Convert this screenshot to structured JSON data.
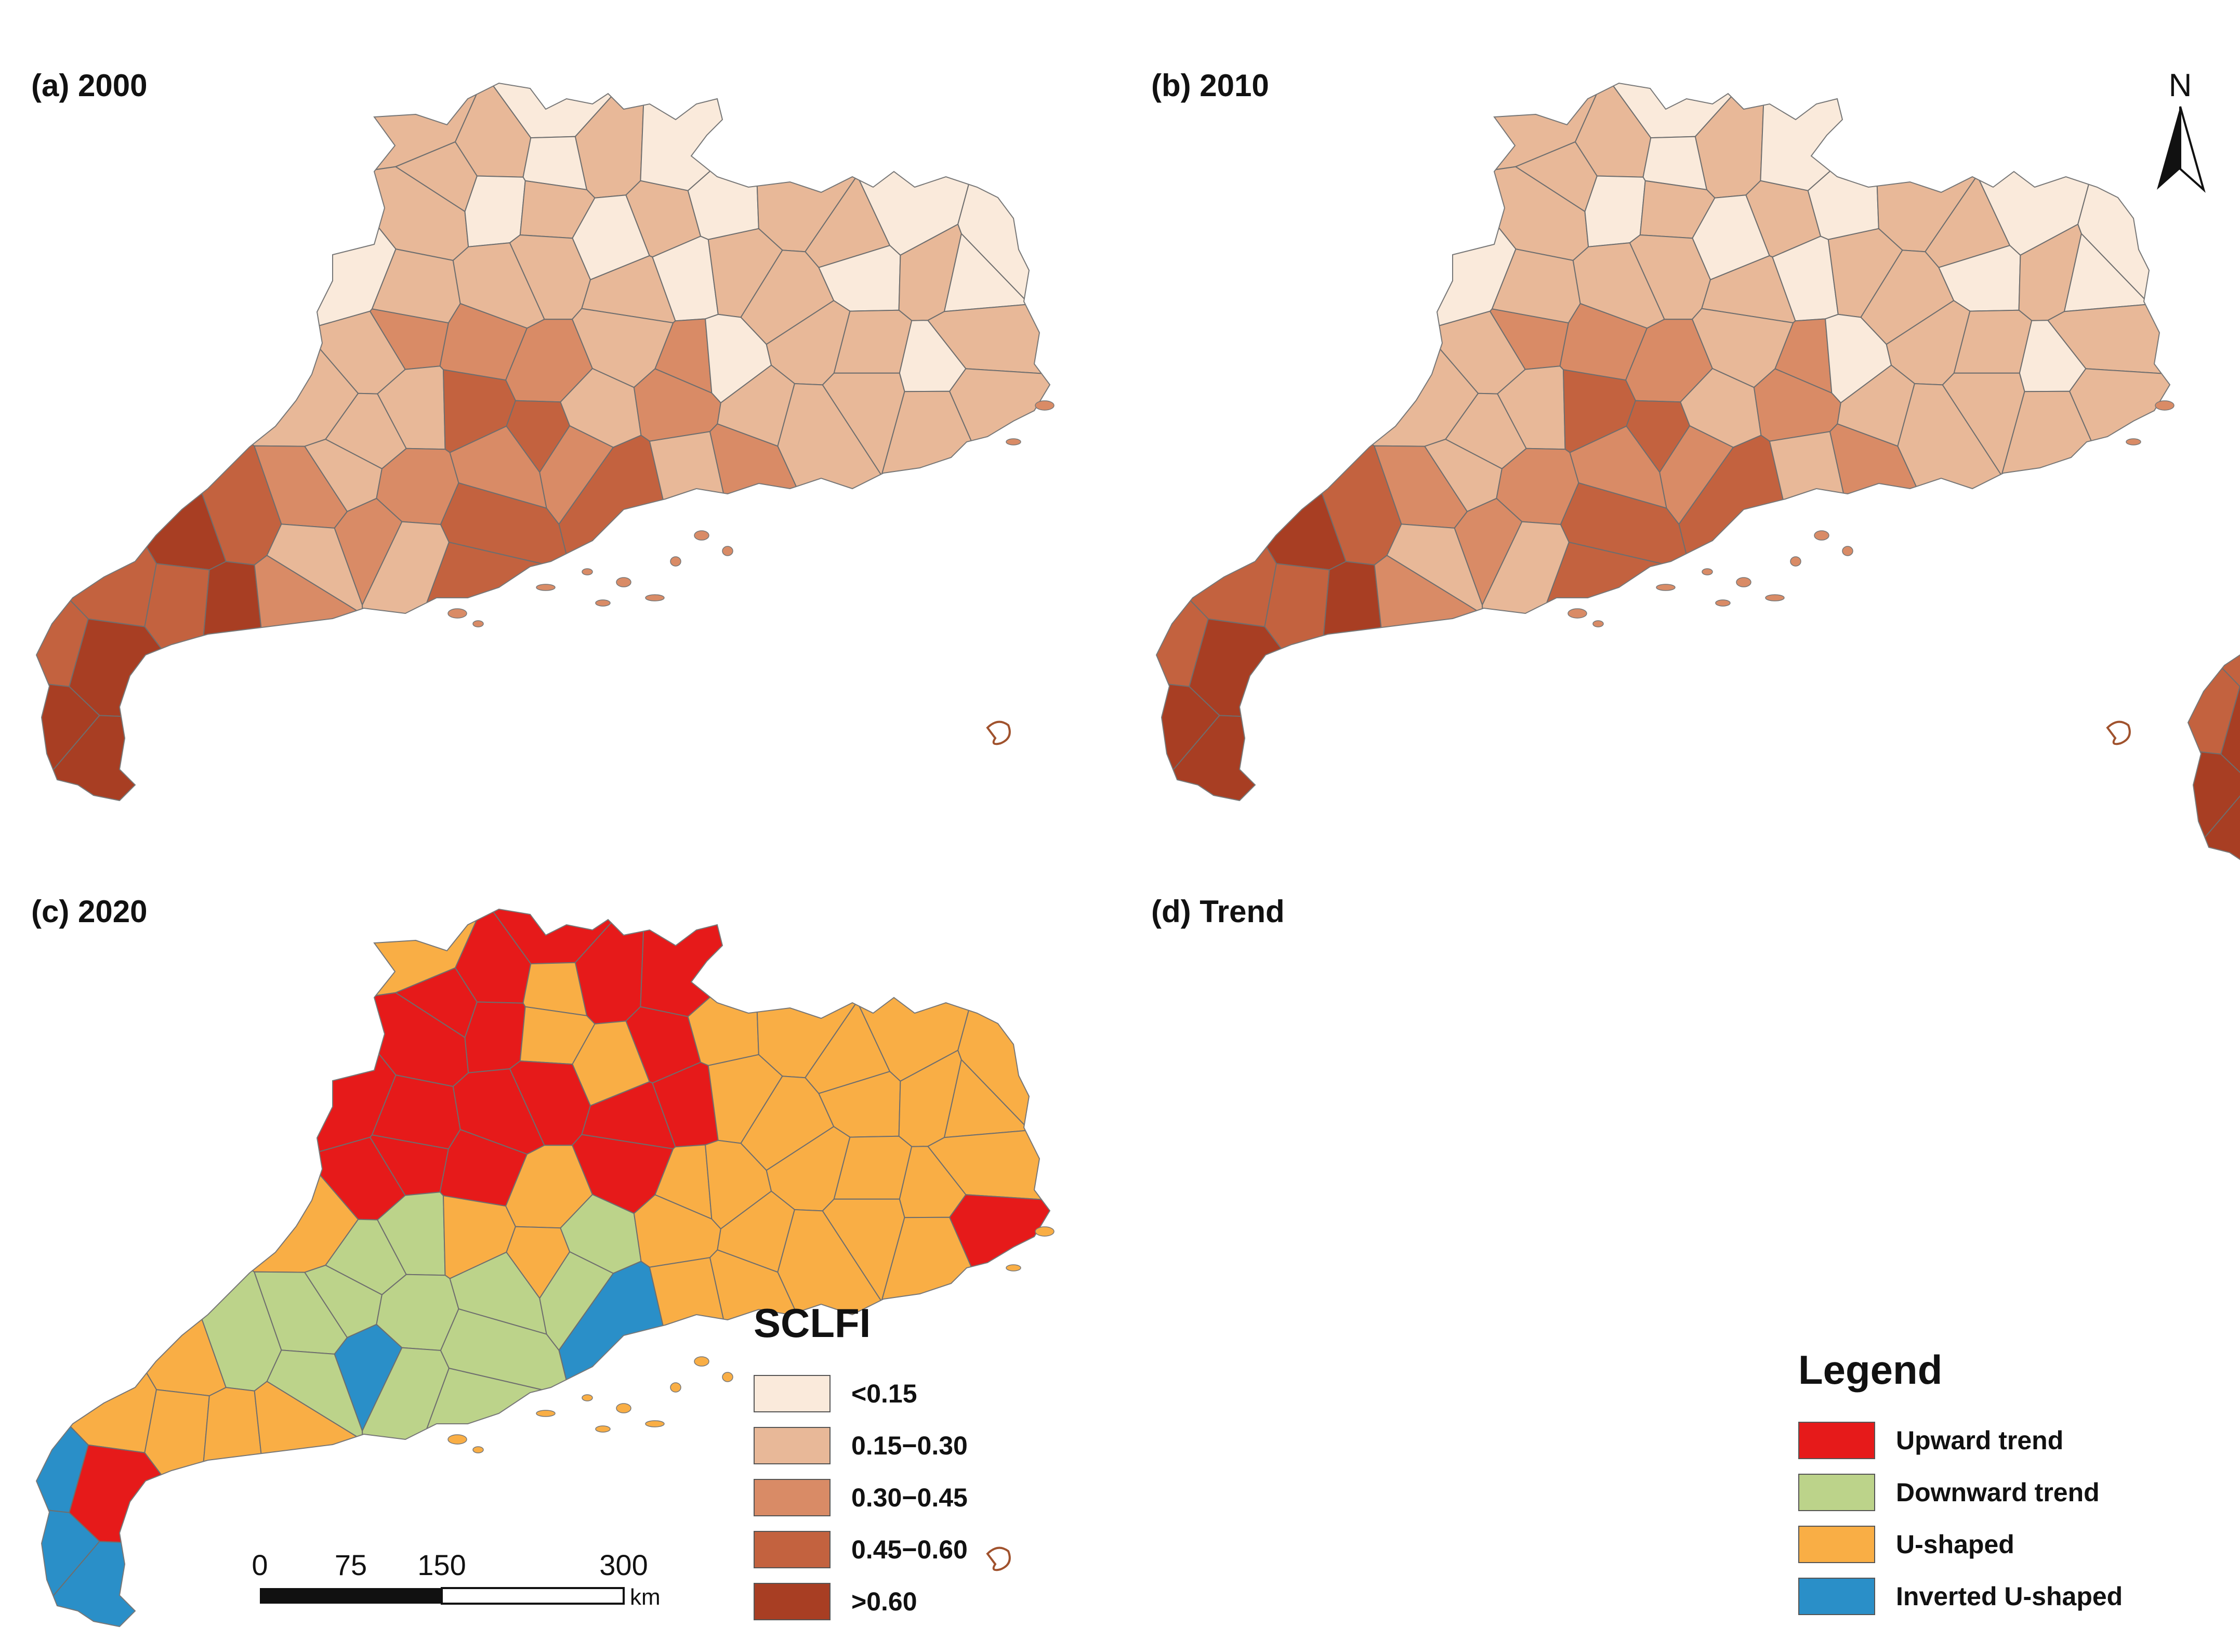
{
  "panels": [
    {
      "id": "a",
      "title": "(a) 2000",
      "scheme": "sclfi",
      "seed": 11
    },
    {
      "id": "b",
      "title": "(b) 2010",
      "scheme": "sclfi",
      "seed": 23
    },
    {
      "id": "c",
      "title": "(c) 2020",
      "scheme": "sclfi",
      "seed": 37
    },
    {
      "id": "d",
      "title": "(d) Trend",
      "scheme": "trend",
      "seed": 5
    }
  ],
  "north_arrow": {
    "label": "N"
  },
  "sclfi_legend": {
    "title": "SCLFI",
    "items": [
      {
        "label": "<0.15",
        "color": "#faeadb"
      },
      {
        "label": "0.15−0.30",
        "color": "#e8b898"
      },
      {
        "label": "0.30−0.45",
        "color": "#d98b66"
      },
      {
        "label": "0.45−0.60",
        "color": "#c3623f"
      },
      {
        "label": ">0.60",
        "color": "#a83e23"
      }
    ]
  },
  "trend_legend": {
    "title": "Legend",
    "items": [
      {
        "label": "Upward trend",
        "color": "#e61a1a"
      },
      {
        "label": "Downward trend",
        "color": "#bcd38a"
      },
      {
        "label": "U-shaped",
        "color": "#f9ae45"
      },
      {
        "label": "Inverted U-shaped",
        "color": "#2a8fc8"
      }
    ]
  },
  "scale_bar": {
    "ticks": [
      "0",
      "75",
      "150",
      "300"
    ],
    "unit": "km"
  }
}
